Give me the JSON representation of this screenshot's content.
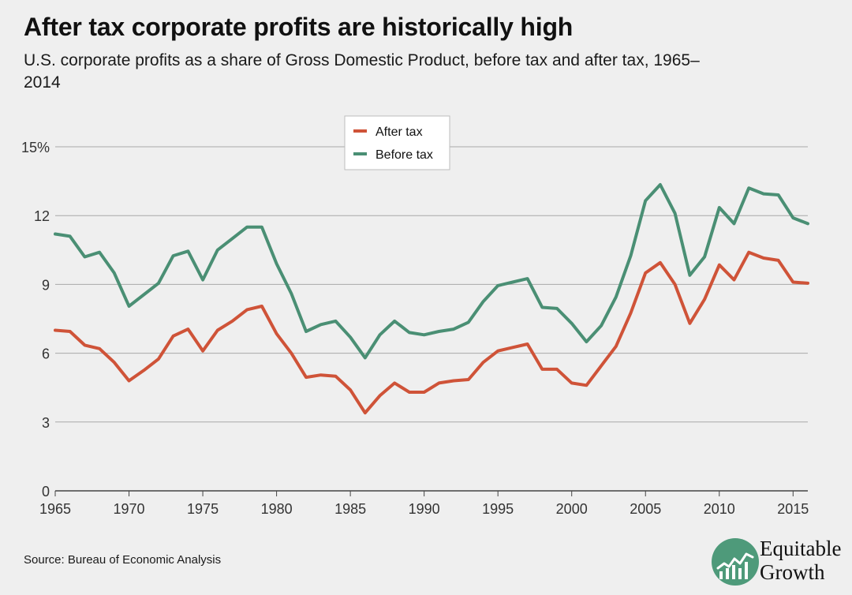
{
  "header": {
    "title": "After tax corporate profits are historically high",
    "subtitle": "U.S. corporate profits as a share of Gross Domestic Product, before tax and after tax, 1965–2014"
  },
  "footer": {
    "source": "Source: Bureau of Economic Analysis"
  },
  "brand": {
    "line1": "Equitable",
    "line2": "Growth",
    "color": "#4e9a7a"
  },
  "chart_data": {
    "type": "line",
    "title": "After tax corporate profits are historically high",
    "xlim": [
      1965,
      2016
    ],
    "ylim": [
      0,
      15
    ],
    "x_ticks": [
      1965,
      1970,
      1975,
      1980,
      1985,
      1990,
      1995,
      2000,
      2005,
      2010,
      2015
    ],
    "y_ticks": [
      0,
      3,
      6,
      9,
      12,
      15
    ],
    "y_tick_labels": [
      "0",
      "3",
      "6",
      "9",
      "12",
      "15%"
    ],
    "grid": true,
    "legend_position": "top-center",
    "x": [
      1965,
      1966,
      1967,
      1968,
      1969,
      1970,
      1971,
      1972,
      1973,
      1974,
      1975,
      1976,
      1977,
      1978,
      1979,
      1980,
      1981,
      1982,
      1983,
      1984,
      1985,
      1986,
      1987,
      1988,
      1989,
      1990,
      1991,
      1992,
      1993,
      1994,
      1995,
      1996,
      1997,
      1998,
      1999,
      2000,
      2001,
      2002,
      2003,
      2004,
      2005,
      2006,
      2007,
      2008,
      2009,
      2010,
      2011,
      2012,
      2013,
      2014,
      2015,
      2016
    ],
    "series": [
      {
        "name": "After tax",
        "color": "#cf5338",
        "values": [
          7.0,
          6.95,
          6.35,
          6.2,
          5.6,
          4.8,
          5.25,
          5.75,
          6.75,
          7.05,
          6.1,
          7.0,
          7.4,
          7.9,
          8.05,
          6.85,
          6.0,
          4.95,
          5.05,
          5.0,
          4.4,
          3.4,
          4.15,
          4.7,
          4.3,
          4.3,
          4.7,
          4.8,
          4.85,
          5.6,
          6.1,
          6.25,
          6.4,
          5.3,
          5.3,
          4.7,
          4.6,
          5.45,
          6.3,
          7.75,
          9.5,
          9.95,
          9.0,
          7.3,
          8.35,
          9.85,
          9.2,
          10.4,
          10.15,
          10.05,
          9.1,
          9.05
        ]
      },
      {
        "name": "Before tax",
        "color": "#4a8f74",
        "values": [
          11.2,
          11.1,
          10.2,
          10.4,
          9.5,
          8.05,
          8.55,
          9.05,
          10.25,
          10.45,
          9.2,
          10.5,
          11.0,
          11.5,
          11.5,
          9.9,
          8.6,
          6.95,
          7.25,
          7.4,
          6.7,
          5.8,
          6.8,
          7.4,
          6.9,
          6.8,
          6.95,
          7.05,
          7.35,
          8.25,
          8.95,
          9.1,
          9.25,
          8.0,
          7.95,
          7.3,
          6.5,
          7.2,
          8.45,
          10.25,
          12.65,
          13.35,
          12.1,
          9.4,
          10.2,
          12.35,
          11.65,
          13.2,
          12.95,
          12.9,
          11.9,
          11.65
        ]
      }
    ]
  }
}
